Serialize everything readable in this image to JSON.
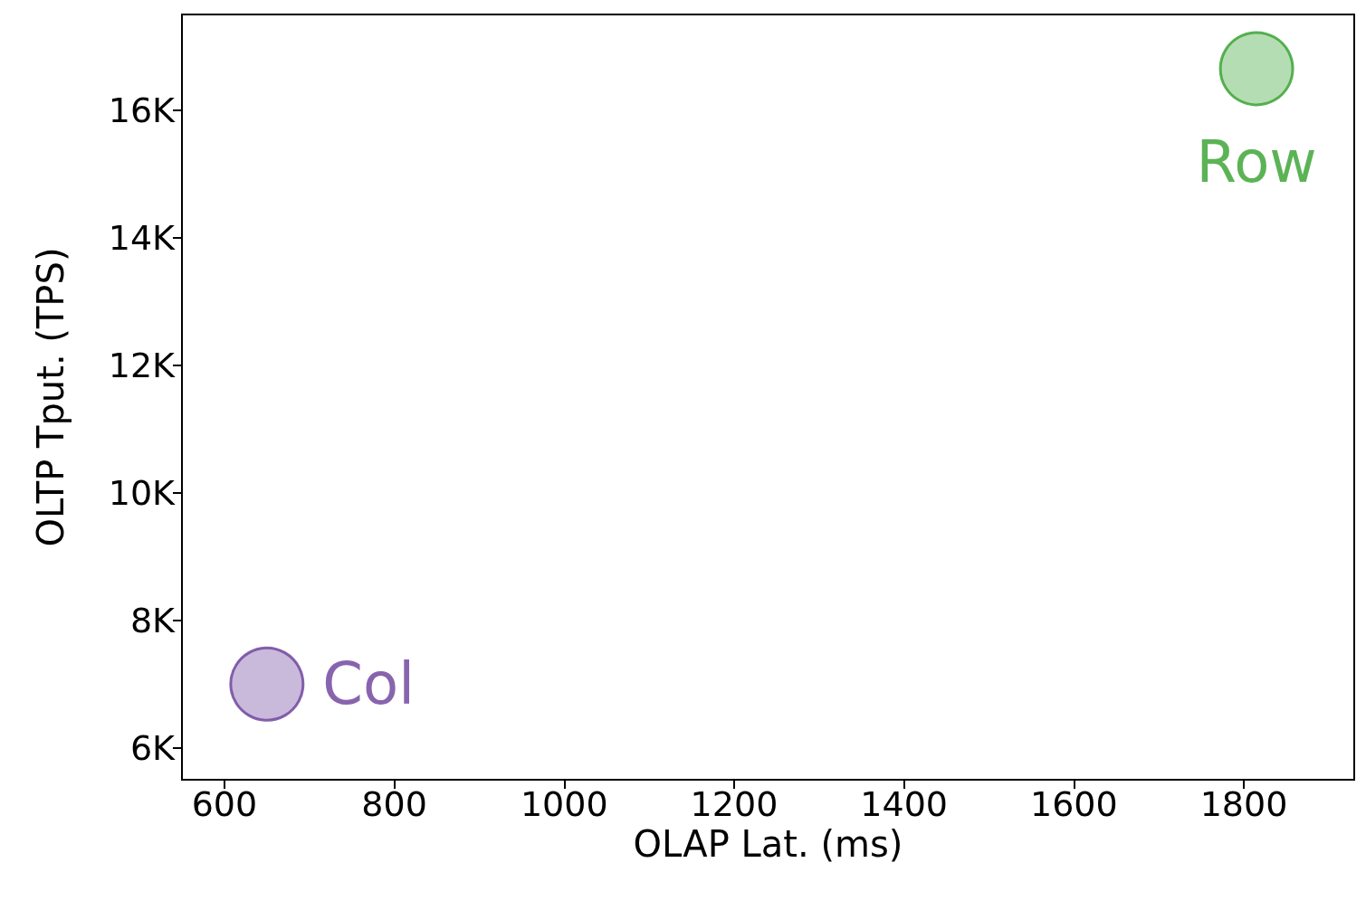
{
  "chart_data": {
    "type": "scatter",
    "xlabel": "OLAP Lat. (ms)",
    "ylabel": "OLTP Tput. (TPS)",
    "xlim": [
      550,
      1930
    ],
    "xticks": [
      600,
      800,
      1000,
      1200,
      1400,
      1600,
      1800
    ],
    "ylim": [
      5500,
      17500
    ],
    "yticks": [
      {
        "value": 6000,
        "label": "6K"
      },
      {
        "value": 8000,
        "label": "8K"
      },
      {
        "value": 10000,
        "label": "10K"
      },
      {
        "value": 12000,
        "label": "12K"
      },
      {
        "value": 14000,
        "label": "14K"
      },
      {
        "value": 16000,
        "label": "16K"
      }
    ],
    "series": [
      {
        "name": "Col",
        "color": "#6a3d9a",
        "x": [
          650
        ],
        "values": [
          7000
        ]
      },
      {
        "name": "Row",
        "color": "#33a02c",
        "x": [
          1815
        ],
        "values": [
          16650
        ]
      }
    ],
    "marker": "circle",
    "grid": false,
    "legend": false
  }
}
